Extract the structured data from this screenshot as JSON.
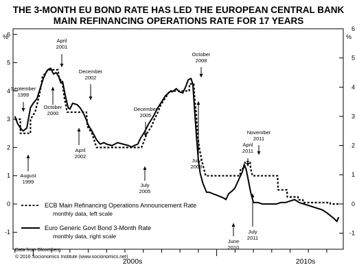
{
  "chart_data": {
    "type": "line",
    "title_lines": [
      "THE 3-MONTH EU BOND RATE HAS LED THE EUROPEAN CENTRAL BANK",
      "MAIN REFINANCING OPERATIONS RATE FOR 17 YEARS"
    ],
    "left_axis": {
      "unit": "%",
      "ticks": [
        "6",
        "5",
        "4",
        "3",
        "2",
        "1",
        "0",
        "-1"
      ],
      "ylim": [
        -1.6,
        6.2
      ]
    },
    "right_axis": {
      "unit": "%",
      "ticks": [
        "6",
        "5",
        "4",
        "3",
        "2",
        "1",
        "0",
        "-1"
      ],
      "ylim": [
        -1.55,
        6.0
      ]
    },
    "x_axis": {
      "labels": [
        "2000s",
        "2010s"
      ],
      "xlim": [
        1998.9,
        2016.9
      ]
    },
    "legend": [
      {
        "label": "ECB Main Refinancing Operations Announcement Rate",
        "sub": "monthly data, left scale",
        "style": "dashed"
      },
      {
        "label": "Euro Generic Govt Bond 3-Month Rate",
        "sub": "monthly data, right scale",
        "style": "solid"
      }
    ],
    "source_lines": [
      "Data from Bloomberg",
      "© 2016 Socionomics Institute (www.socionomics.net)"
    ],
    "series": [
      {
        "name": "ECB Main Refinancing Operations Announcement Rate",
        "axis": "left",
        "style": "dashed",
        "points": [
          [
            1999.0,
            3.0
          ],
          [
            1999.3,
            3.0
          ],
          [
            1999.3,
            2.5
          ],
          [
            1999.85,
            2.5
          ],
          [
            1999.85,
            3.0
          ],
          [
            2000.1,
            3.25
          ],
          [
            2000.2,
            3.5
          ],
          [
            2000.3,
            3.75
          ],
          [
            2000.45,
            4.25
          ],
          [
            2000.5,
            4.5
          ],
          [
            2000.8,
            4.75
          ],
          [
            2001.35,
            4.75
          ],
          [
            2001.4,
            4.5
          ],
          [
            2001.6,
            4.25
          ],
          [
            2001.7,
            3.75
          ],
          [
            2001.85,
            3.25
          ],
          [
            2002.9,
            3.25
          ],
          [
            2002.95,
            2.75
          ],
          [
            2003.2,
            2.5
          ],
          [
            2003.45,
            2.0
          ],
          [
            2005.9,
            2.0
          ],
          [
            2006.2,
            2.5
          ],
          [
            2006.45,
            2.75
          ],
          [
            2006.6,
            3.0
          ],
          [
            2006.8,
            3.25
          ],
          [
            2006.95,
            3.5
          ],
          [
            2007.2,
            3.75
          ],
          [
            2007.45,
            4.0
          ],
          [
            2008.5,
            4.0
          ],
          [
            2008.52,
            4.25
          ],
          [
            2008.75,
            4.25
          ],
          [
            2008.8,
            3.75
          ],
          [
            2008.88,
            3.25
          ],
          [
            2008.95,
            2.5
          ],
          [
            2009.05,
            2.0
          ],
          [
            2009.2,
            1.5
          ],
          [
            2009.3,
            1.25
          ],
          [
            2009.4,
            1.0
          ],
          [
            2011.27,
            1.0
          ],
          [
            2011.3,
            1.25
          ],
          [
            2011.52,
            1.25
          ],
          [
            2011.55,
            1.5
          ],
          [
            2011.82,
            1.5
          ],
          [
            2011.85,
            1.25
          ],
          [
            2011.95,
            1.0
          ],
          [
            2013.32,
            1.0
          ],
          [
            2013.35,
            0.5
          ],
          [
            2013.83,
            0.5
          ],
          [
            2013.85,
            0.25
          ],
          [
            2014.43,
            0.25
          ],
          [
            2014.45,
            0.15
          ],
          [
            2014.7,
            0.15
          ],
          [
            2014.72,
            0.05
          ],
          [
            2016.18,
            0.05
          ],
          [
            2016.2,
            0.0
          ],
          [
            2016.7,
            0.0
          ]
        ]
      },
      {
        "name": "Euro Generic Govt Bond 3-Month Rate",
        "axis": "right",
        "style": "solid",
        "points": [
          [
            1999.0,
            3.0
          ],
          [
            1999.15,
            2.75
          ],
          [
            1999.3,
            2.6
          ],
          [
            1999.45,
            2.5
          ],
          [
            1999.65,
            2.6
          ],
          [
            1999.85,
            3.3
          ],
          [
            2000.0,
            3.45
          ],
          [
            2000.2,
            3.6
          ],
          [
            2000.4,
            4.0
          ],
          [
            2000.55,
            4.3
          ],
          [
            2000.7,
            4.5
          ],
          [
            2000.8,
            4.6
          ],
          [
            2000.95,
            4.65
          ],
          [
            2001.1,
            4.45
          ],
          [
            2001.25,
            4.5
          ],
          [
            2001.4,
            4.35
          ],
          [
            2001.5,
            4.15
          ],
          [
            2001.6,
            4.2
          ],
          [
            2001.75,
            3.7
          ],
          [
            2001.9,
            3.3
          ],
          [
            2002.0,
            3.25
          ],
          [
            2002.15,
            3.45
          ],
          [
            2002.4,
            3.4
          ],
          [
            2002.55,
            3.3
          ],
          [
            2002.7,
            3.15
          ],
          [
            2002.85,
            2.95
          ],
          [
            2003.0,
            2.7
          ],
          [
            2003.2,
            2.5
          ],
          [
            2003.45,
            2.2
          ],
          [
            2003.65,
            2.05
          ],
          [
            2003.85,
            2.1
          ],
          [
            2004.0,
            2.05
          ],
          [
            2004.3,
            2.0
          ],
          [
            2004.6,
            2.1
          ],
          [
            2004.9,
            2.05
          ],
          [
            2005.2,
            2.0
          ],
          [
            2005.35,
            1.95
          ],
          [
            2005.5,
            2.0
          ],
          [
            2005.7,
            2.05
          ],
          [
            2005.85,
            2.25
          ],
          [
            2006.05,
            2.45
          ],
          [
            2006.3,
            2.75
          ],
          [
            2006.55,
            3.0
          ],
          [
            2006.75,
            3.25
          ],
          [
            2006.95,
            3.45
          ],
          [
            2007.2,
            3.7
          ],
          [
            2007.45,
            3.85
          ],
          [
            2007.6,
            3.85
          ],
          [
            2007.8,
            3.95
          ],
          [
            2007.95,
            3.85
          ],
          [
            2008.15,
            3.8
          ],
          [
            2008.3,
            4.0
          ],
          [
            2008.45,
            4.25
          ],
          [
            2008.6,
            4.3
          ],
          [
            2008.7,
            4.1
          ],
          [
            2008.8,
            3.2
          ],
          [
            2008.9,
            2.3
          ],
          [
            2009.0,
            1.5
          ],
          [
            2009.1,
            1.05
          ],
          [
            2009.25,
            0.7
          ],
          [
            2009.45,
            0.4
          ],
          [
            2009.6,
            0.4
          ],
          [
            2009.8,
            0.35
          ],
          [
            2010.0,
            0.3
          ],
          [
            2010.2,
            0.25
          ],
          [
            2010.4,
            0.2
          ],
          [
            2010.5,
            0.15
          ],
          [
            2010.65,
            0.35
          ],
          [
            2010.85,
            0.45
          ],
          [
            2011.0,
            0.55
          ],
          [
            2011.25,
            0.9
          ],
          [
            2011.4,
            1.1
          ],
          [
            2011.5,
            1.35
          ],
          [
            2011.6,
            1.2
          ],
          [
            2011.7,
            0.9
          ],
          [
            2011.85,
            0.4
          ],
          [
            2012.0,
            0.05
          ],
          [
            2012.25,
            0.05
          ],
          [
            2012.5,
            0.0
          ],
          [
            2012.75,
            0.0
          ],
          [
            2013.0,
            0.0
          ],
          [
            2013.25,
            0.0
          ],
          [
            2013.5,
            0.05
          ],
          [
            2013.75,
            0.05
          ],
          [
            2014.0,
            0.1
          ],
          [
            2014.25,
            0.15
          ],
          [
            2014.5,
            0.05
          ],
          [
            2014.75,
            0.0
          ],
          [
            2015.0,
            -0.05
          ],
          [
            2015.25,
            -0.1
          ],
          [
            2015.5,
            -0.15
          ],
          [
            2015.75,
            -0.2
          ],
          [
            2016.0,
            -0.3
          ],
          [
            2016.2,
            -0.4
          ],
          [
            2016.4,
            -0.5
          ],
          [
            2016.55,
            -0.6
          ],
          [
            2016.65,
            -0.45
          ]
        ]
      }
    ],
    "annotations": [
      {
        "lines": [
          "April",
          "2001"
        ]
      },
      {
        "lines": [
          "September",
          "1999"
        ]
      },
      {
        "lines": [
          "October",
          "2000"
        ]
      },
      {
        "lines": [
          "December",
          "2002"
        ]
      },
      {
        "lines": [
          "April",
          "2002"
        ]
      },
      {
        "lines": [
          "August",
          "1999"
        ]
      },
      {
        "lines": [
          "December",
          "2005"
        ]
      },
      {
        "lines": [
          "July",
          "2005"
        ]
      },
      {
        "lines": [
          "October",
          "2008"
        ]
      },
      {
        "lines": [
          "July",
          "2008"
        ]
      },
      {
        "lines": [
          "November",
          "2011"
        ]
      },
      {
        "lines": [
          "April",
          "2011"
        ]
      },
      {
        "lines": [
          "June",
          "2010"
        ]
      },
      {
        "lines": [
          "July",
          "2011"
        ]
      }
    ]
  }
}
